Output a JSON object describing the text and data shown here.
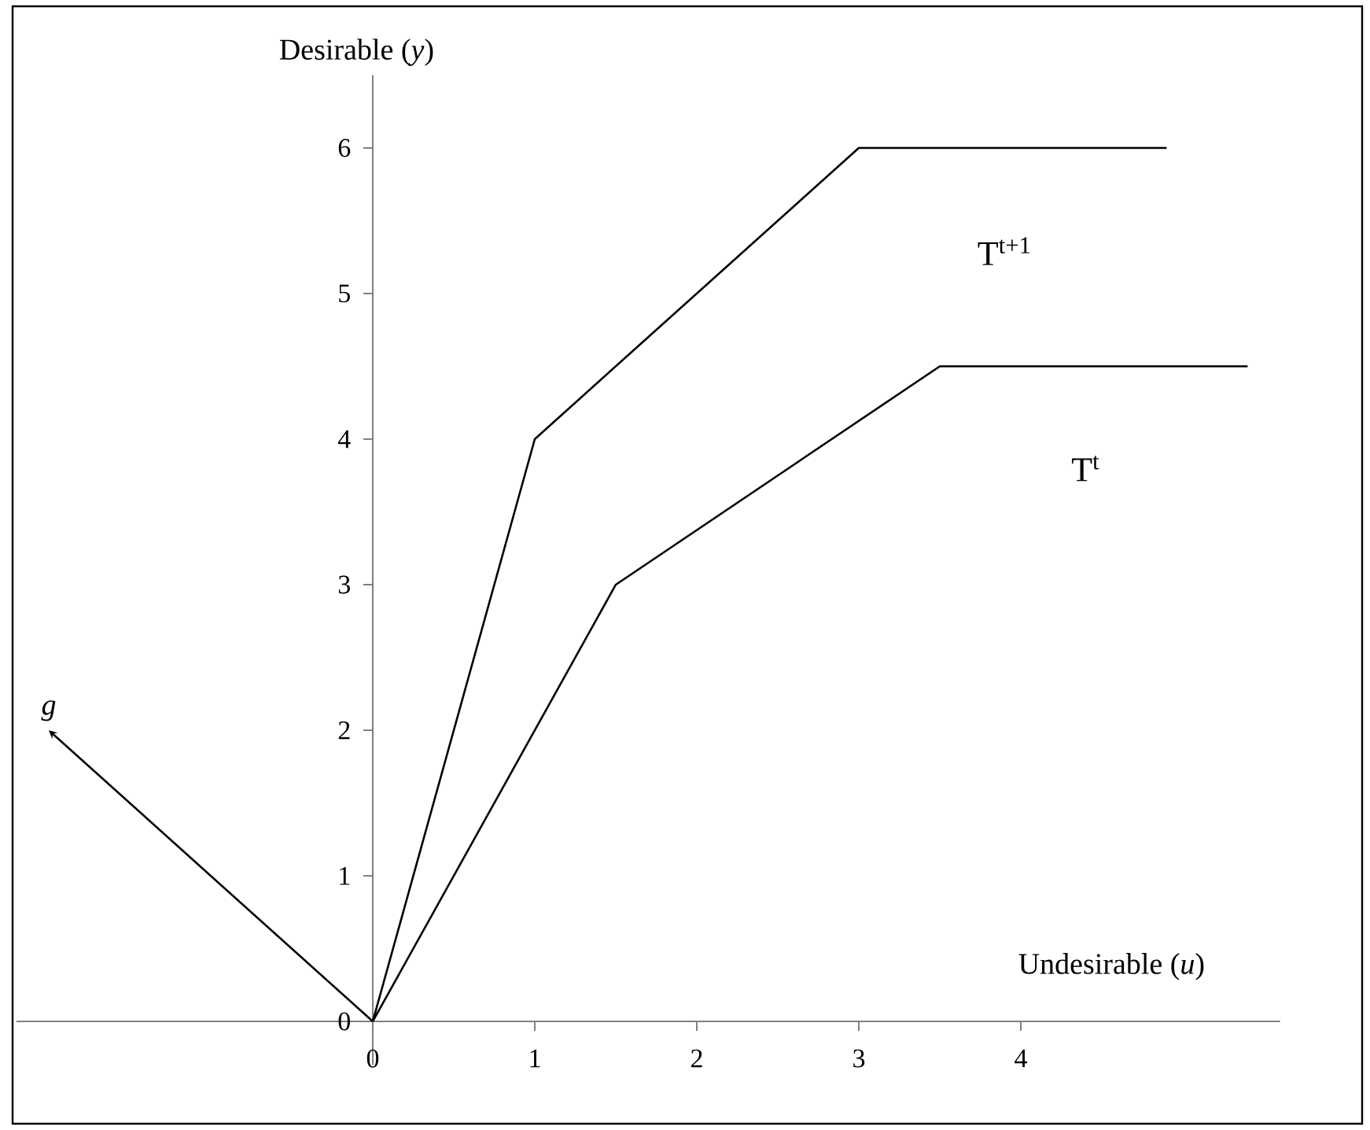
{
  "chart_data": {
    "type": "line",
    "xlabel": "Undesirable (*u*)",
    "ylabel": "Desirable (*y*)",
    "series": [
      {
        "name": "T$^{t+1}$",
        "color": "#000000",
        "x": [
          0,
          1,
          3,
          4.9
        ],
        "values": [
          0,
          4,
          6,
          6
        ]
      },
      {
        "name": "T$^{t}$",
        "color": "#000000",
        "x": [
          0,
          1.5,
          3.5,
          5.4
        ],
        "values": [
          0,
          3,
          4.5,
          4.5
        ]
      },
      {
        "name": "g",
        "color": "#000000",
        "x": [
          0,
          -2
        ],
        "values": [
          0,
          2
        ]
      }
    ],
    "xlim": [
      -2.2,
      5.6
    ],
    "ylim": [
      -0.3,
      6.5
    ],
    "xticks": [
      0,
      1,
      2,
      3,
      4
    ],
    "yticks": [
      0,
      1,
      2,
      3,
      4,
      5,
      6
    ],
    "grid": false,
    "legend": false,
    "marker": "none",
    "line_style": "solid"
  }
}
